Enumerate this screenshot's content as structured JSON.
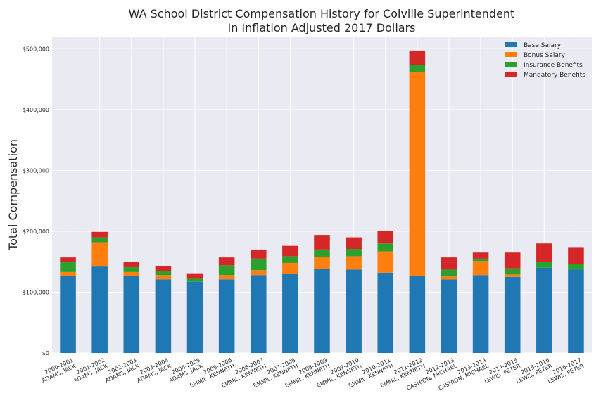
{
  "chart_data": {
    "type": "bar",
    "stacked": true,
    "title": "WA School District Compensation History for Colville Superintendent",
    "subtitle": "In Inflation Adjusted 2017 Dollars",
    "xlabel": "",
    "ylabel": "Total Compensation",
    "ylim": [
      0,
      520000
    ],
    "yticks": [
      0,
      100000,
      200000,
      300000,
      400000,
      500000
    ],
    "ytick_labels": [
      "$0",
      "$100,000",
      "$200,000",
      "$300,000",
      "$400,000",
      "$500,000"
    ],
    "grid": true,
    "legend_position": "top-right",
    "categories": [
      "2000-2001\nADAMS, JACK",
      "2001-2002\nADAMS, JACK",
      "2002-2003\nADAMS, JACK",
      "2003-2004\nADAMS, JACK",
      "2004-2005\nADAMS, JACK",
      "2005-2006\nEMMIL, KENNETH",
      "2006-2007\nEMMIL, KENNETH",
      "2007-2008\nEMMIL, KENNETH",
      "2008-2009\nEMMIL, KENNETH",
      "2009-2010\nEMMIL, KENNETH",
      "2010-2011\nEMMIL, KENNETH",
      "2011-2012\nEMMIL, KENNETH",
      "2012-2013\nCASHION, MICHAEL",
      "2013-2014\nCASHION, MICHAEL",
      "2014-2015\nLEWIS, PETER",
      "2015-2016\nLEWIS, PETER",
      "2016-2017\nLEWIS, PETER"
    ],
    "series": [
      {
        "name": "Base Salary",
        "color": "#1f77b4",
        "values": [
          126000,
          142000,
          127000,
          121000,
          117000,
          121000,
          128000,
          130000,
          138000,
          137000,
          132000,
          127000,
          121000,
          128000,
          125000,
          140000,
          137000
        ]
      },
      {
        "name": "Bonus Salary",
        "color": "#ff7f0e",
        "values": [
          7000,
          40000,
          6000,
          7000,
          0,
          7000,
          8000,
          18000,
          20000,
          22000,
          35000,
          335000,
          5000,
          23000,
          4000,
          0,
          0
        ]
      },
      {
        "name": "Insurance Benefits",
        "color": "#2ca02c",
        "values": [
          16000,
          8000,
          8000,
          7000,
          5000,
          16000,
          19000,
          11000,
          12000,
          12000,
          13000,
          11000,
          11000,
          4000,
          10000,
          10000,
          9000
        ]
      },
      {
        "name": "Mandatory Benefits",
        "color": "#d62728",
        "values": [
          8000,
          9000,
          9000,
          8000,
          9000,
          13000,
          15000,
          17000,
          24000,
          19000,
          20000,
          24000,
          20000,
          10000,
          26000,
          30000,
          28000
        ]
      }
    ]
  }
}
